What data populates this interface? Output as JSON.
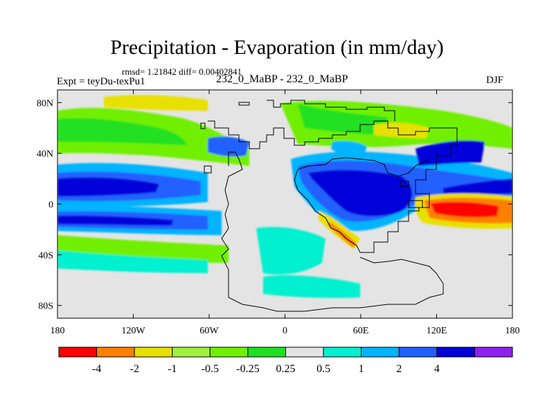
{
  "header": {
    "title": "Precipitation - Evaporation (in mm/day)",
    "stats": "rmsd= 1.21842 diff= 0.00402841",
    "experiment": "Expt = teyDu-texPu1",
    "comparison": "232_0_MaBP - 232_0_MaBP",
    "season": "DJF"
  },
  "map": {
    "background_color": "#e4e4e4",
    "x_ticks": [
      "180",
      "120W",
      "60W",
      "0",
      "60E",
      "120E",
      "180"
    ],
    "y_ticks": [
      "80N",
      "40N",
      "0",
      "40S",
      "80S"
    ]
  },
  "colorbar": {
    "colors": [
      "#ff0000",
      "#ff8000",
      "#e8e000",
      "#a0f040",
      "#70f000",
      "#20e020",
      "#e4e4e4",
      "#00f0d0",
      "#00b4ff",
      "#2060ff",
      "#0000d8",
      "#9020f0"
    ],
    "labels": [
      "-4",
      "-2",
      "-1",
      "-0.5",
      "-0.25",
      "0.25",
      "0.5",
      "1",
      "2",
      "4"
    ]
  }
}
